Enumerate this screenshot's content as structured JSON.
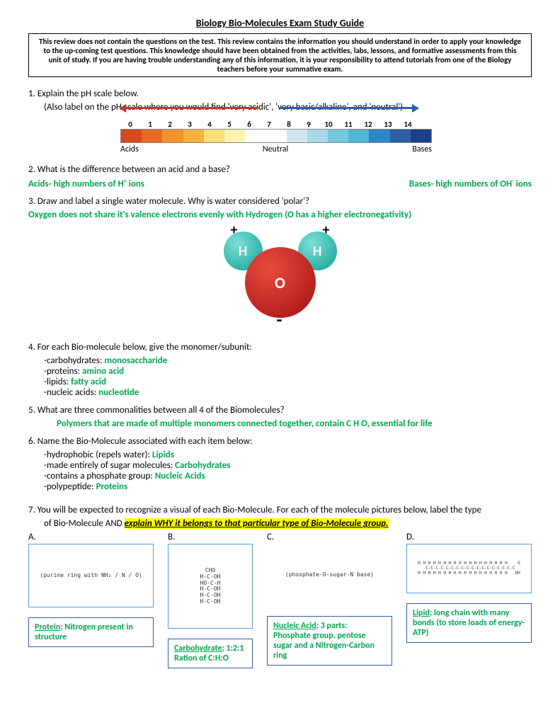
{
  "title": "Biology Bio-Molecules Exam Study Guide",
  "intro": "This review does not contain the questions on the test.  This review contains the information you should understand in order to apply your knowledge to the up-coming test questions.  This knowledge should have been obtained from the activities, labs, lessons, and formative assessments from this unit of study.  If you are having trouble understanding any of this information, it is your responsibility to attend tutorials from one of the Biology teachers before your summative exam.",
  "q1": "1.  Explain the pH scale below.",
  "q1b": "(Also label on the pH scale where you would find 'very acidic', 'very basic/alkaline', and 'neutral')",
  "ph": {
    "numbers": [
      "0",
      "1",
      "2",
      "3",
      "4",
      "5",
      "6",
      "7",
      "8",
      "9",
      "10",
      "11",
      "12",
      "13",
      "14"
    ],
    "colors": [
      "#d84a1e",
      "#e96a23",
      "#f3932e",
      "#f6b23e",
      "#fbe07a",
      "#fff3b0",
      "#ffffff",
      "#ffffff",
      "#cfe8ef",
      "#a8d9e6",
      "#74c8df",
      "#4fb6d6",
      "#2e87c6",
      "#2e5fa3",
      "#1d3f8a"
    ],
    "labels": {
      "acids": "Acids",
      "neutral": "Neutral",
      "bases": "Bases"
    }
  },
  "q2": "2.  What is the difference between an acid and a base?",
  "q2a": "Acids- high numbers of H",
  "q2a_sup": "+",
  "q2a_end": " ions",
  "q2b": "Bases- high numbers of OH",
  "q2b_sup": "-",
  "q2b_end": " ions",
  "q3": "3.  Draw and label a single water molecule. Why is water considered 'polar'?",
  "q3a": "Oxygen does not share it's valence electrons evenly with Hydrogen (O has a higher electronegativity)",
  "water": {
    "h": "H",
    "o": "O",
    "plus": "+",
    "minus": "-"
  },
  "q4": "4.  For each Bio-molecule below, give the monomer/subunit:",
  "q4items": [
    {
      "label": "-carbohydrates: ",
      "ans": "monosaccharide"
    },
    {
      "label": "-proteins: ",
      "ans": "amino acid"
    },
    {
      "label": "-lipids: ",
      "ans": "fatty acid"
    },
    {
      "label": "-nucleic acids: ",
      "ans": "nucleotide"
    }
  ],
  "q5": "5. What are three commonalities between all 4 of the Biomolecules?",
  "q5a": "Polymers that are made of multiple monomers connected together, contain C H O, essential for life",
  "q6": "6.  Name the Bio-Molecule associated with each item below:",
  "q6items": [
    {
      "label": "-hydrophobic (repels water): ",
      "ans": "Lipids"
    },
    {
      "label": "-made entirely of sugar molecules: ",
      "ans": "Carbohydrates"
    },
    {
      "label": "-contains a phosphate group: ",
      "ans": "Nucleic Acids"
    },
    {
      "label": "-polypeptide: ",
      "ans": "Proteins"
    }
  ],
  "q7a": "7.  You will be expected to recognize a visual of each Bio-Molecule.  For each of the molecule pictures below, label the type",
  "q7b_pre": "of Bio-Molecule AND ",
  "q7b_hl": "explain WHY it belongs to that particular type of Bio-Molecule group.",
  "mols": {
    "a": {
      "letter": "A.",
      "img": "(purine ring with NH₂ / N / O)",
      "lead": "Protein",
      "rest": "; Nitrogen present in structure"
    },
    "b": {
      "letter": "B.",
      "img": "CHO\nH-C-OH\nHO-C-H\nH-C-OH\nH-C-OH\nH-C-OH",
      "lead": "Carbohydrate",
      "rest": "; 1:2:1 Ration of C:H:O"
    },
    "c": {
      "letter": "C.",
      "img": "(phosphate-O-sugar-N base)",
      "lead": "Nucleic Acid",
      "rest": "; 3 parts: Phosphate group, pentose sugar and a Nitrogen-Carbon ring"
    },
    "d": {
      "letter": "D.",
      "img": "H H H H H H H H H H H H H H H H H H    O\n-C-C-C-C-C-C-C-C-C-C-C-C-C-C-C-C-C-C\nH H H H H H H H H H H H H H H H H H   OH",
      "lead": "Lipid",
      "rest": "; long chain with many bonds (to store loads of energy- ATP)"
    }
  }
}
